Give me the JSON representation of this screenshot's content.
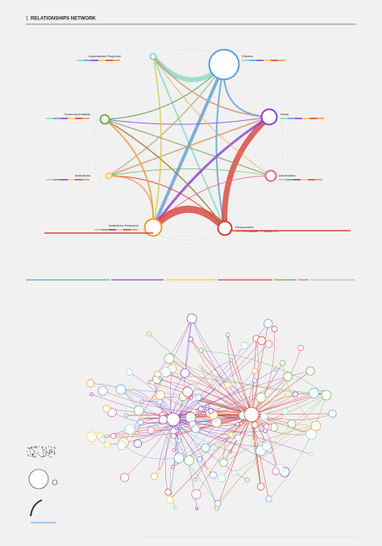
{
  "header": {
    "number": "1",
    "title": "RELATIONSHIPS NETWORK"
  },
  "nodes": [
    {
      "label": "Associazioni Regionali"
    },
    {
      "label": "Citizens"
    },
    {
      "label": "News"
    },
    {
      "label": "Universities"
    },
    {
      "label": "Researchers"
    },
    {
      "label": "Institutions Research"
    },
    {
      "label": "Institutions"
    },
    {
      "label": "Environmentalists"
    }
  ]
}
